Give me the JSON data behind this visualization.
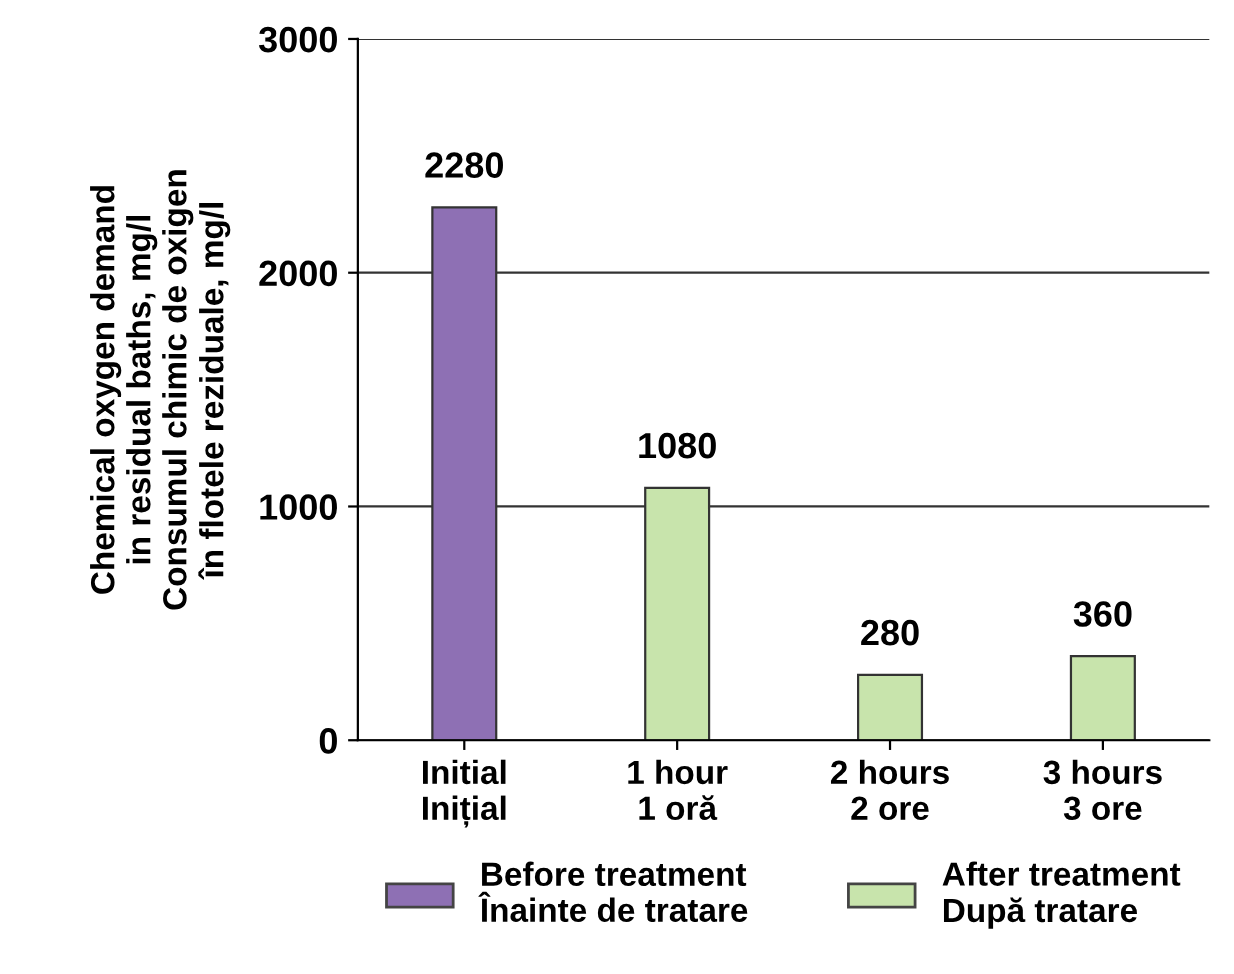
{
  "chart_data": {
    "type": "bar",
    "ylabel": "Chemical oxygen demand\nin residual baths, mg/l\nConsumul chimic de oxigen\nîn flotele reziduale, mg/l",
    "categories": [
      "Initial\nInițial",
      "1 hour\n1 oră",
      "2 hours\n2 ore",
      "3 hours\n3 ore"
    ],
    "series": [
      {
        "name": "Before treatment\nÎnainte de tratare",
        "color": "#8e70b4",
        "values": [
          2280,
          null,
          null,
          null
        ]
      },
      {
        "name": "After treatment\nDupă tratare",
        "color": "#c8e4ac",
        "values": [
          null,
          1080,
          280,
          360
        ]
      }
    ],
    "ylim": [
      0,
      3000
    ],
    "yticks": [
      0,
      1000,
      2000,
      3000
    ],
    "grid": "y",
    "legend": "bottom",
    "data_labels": true
  }
}
